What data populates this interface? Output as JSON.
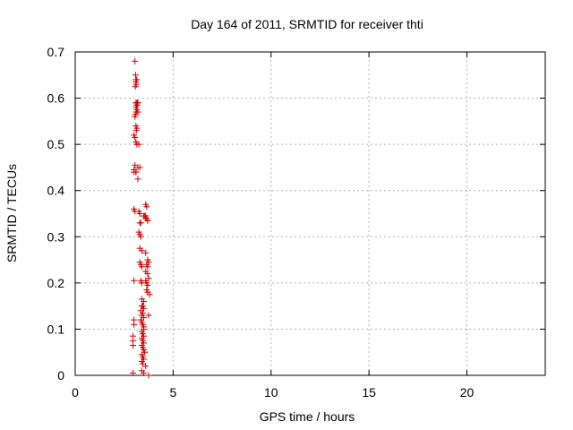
{
  "chart_data": {
    "type": "scatter",
    "title": "Day 164 of 2011, SRMTID for receiver thti",
    "xlabel": "GPS time / hours",
    "ylabel": "SRMTID / TECUs",
    "xlim": [
      0,
      24
    ],
    "ylim": [
      0,
      0.7
    ],
    "x_ticks": [
      "0",
      "5",
      "10",
      "15",
      "20"
    ],
    "y_ticks": [
      "0",
      "0.1",
      "0.2",
      "0.3",
      "0.4",
      "0.5",
      "0.6",
      "0.7"
    ],
    "x_tick_values": [
      0,
      5,
      10,
      15,
      20
    ],
    "y_tick_values": [
      0,
      0.1,
      0.2,
      0.3,
      0.4,
      0.5,
      0.6,
      0.7
    ],
    "grid": true,
    "marker": "+",
    "point_color": "#cc0000",
    "series": [
      {
        "x": [
          3.05,
          3.08,
          3.1,
          3.1,
          3.12,
          3.15,
          3.07,
          3.1,
          3.13,
          3.15,
          3.18,
          3.1,
          3.15,
          3.17,
          3.2,
          3.05,
          3.08,
          3.12,
          3.2,
          3.1,
          3.12,
          3.15,
          3.0,
          3.05,
          3.1,
          3.15,
          3.25,
          3.0,
          3.1,
          3.2,
          3.0,
          3.05,
          3.1,
          3.2,
          3.3,
          3.6,
          3.65,
          3.6,
          3.7,
          3.0,
          3.05,
          3.25,
          3.3,
          3.5,
          3.55,
          3.6,
          3.3,
          3.35,
          3.7,
          3.65,
          3.25,
          3.3,
          3.35,
          3.3,
          3.4,
          3.6,
          3.7,
          3.75,
          3.65,
          3.7,
          3.0,
          3.3,
          3.35,
          3.4,
          3.6,
          3.7,
          3.75,
          3.35,
          3.4,
          3.6,
          3.65,
          3.7,
          3.65,
          3.7,
          3.8,
          3.4,
          3.5,
          3.0,
          3.4,
          3.45,
          3.5,
          3.35,
          3.4,
          3.45,
          3.5,
          3.75,
          3.0,
          3.35,
          3.4,
          2.95,
          2.95,
          3.45,
          3.5,
          3.5,
          2.95,
          3.4,
          3.45,
          3.5,
          3.4,
          3.45,
          3.5,
          3.4,
          3.45,
          3.5,
          3.55,
          3.4,
          3.45,
          3.5,
          3.4,
          3.45,
          3.6,
          2.95,
          3.4,
          3.5,
          3.75
        ],
        "y": [
          0.68,
          0.65,
          0.64,
          0.635,
          0.63,
          0.64,
          0.625,
          0.59,
          0.585,
          0.59,
          0.59,
          0.58,
          0.575,
          0.585,
          0.59,
          0.56,
          0.565,
          0.57,
          0.57,
          0.54,
          0.53,
          0.535,
          0.52,
          0.515,
          0.505,
          0.5,
          0.5,
          0.445,
          0.44,
          0.45,
          0.44,
          0.455,
          0.44,
          0.425,
          0.45,
          0.37,
          0.365,
          0.345,
          0.335,
          0.36,
          0.355,
          0.355,
          0.35,
          0.345,
          0.345,
          0.34,
          0.33,
          0.33,
          0.335,
          0.34,
          0.31,
          0.305,
          0.3,
          0.275,
          0.27,
          0.265,
          0.25,
          0.245,
          0.24,
          0.235,
          0.205,
          0.245,
          0.24,
          0.235,
          0.225,
          0.22,
          0.21,
          0.205,
          0.2,
          0.205,
          0.2,
          0.195,
          0.185,
          0.18,
          0.175,
          0.165,
          0.16,
          0.12,
          0.15,
          0.15,
          0.145,
          0.14,
          0.13,
          0.135,
          0.125,
          0.13,
          0.11,
          0.12,
          0.115,
          0.085,
          0.075,
          0.11,
          0.105,
          0.1,
          0.065,
          0.095,
          0.09,
          0.085,
          0.08,
          0.075,
          0.07,
          0.065,
          0.06,
          0.055,
          0.05,
          0.045,
          0.04,
          0.035,
          0.03,
          0.025,
          0.02,
          0.005,
          0.01,
          0.005,
          0.0
        ]
      }
    ]
  }
}
